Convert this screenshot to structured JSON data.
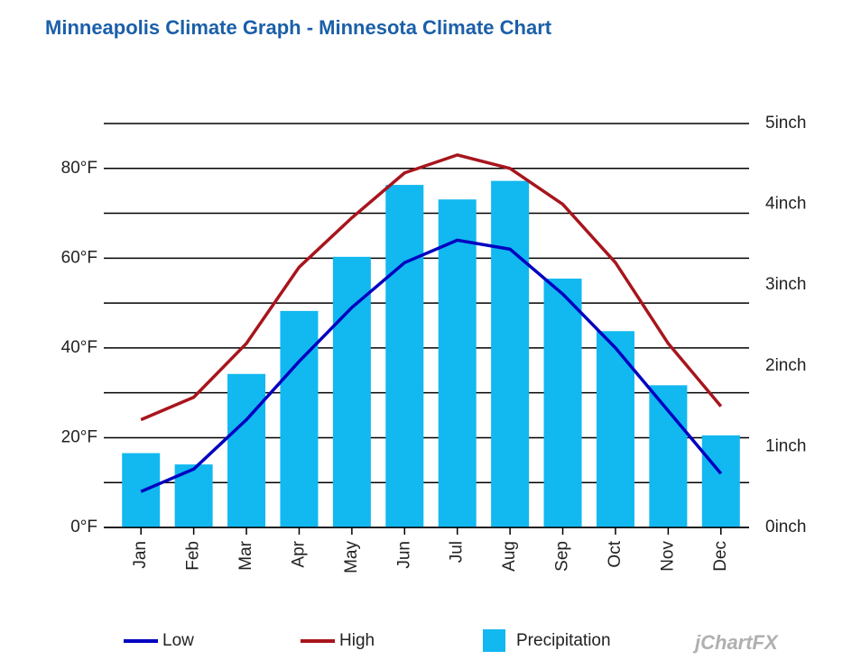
{
  "chart_data": {
    "type": "bar-line",
    "title": "Minneapolis Climate Graph - Minnesota Climate Chart",
    "categories": [
      "Jan",
      "Feb",
      "Mar",
      "Apr",
      "May",
      "Jun",
      "Jul",
      "Aug",
      "Sep",
      "Oct",
      "Nov",
      "Dec"
    ],
    "series": [
      {
        "name": "Low",
        "type": "line",
        "color": "#0000c0",
        "values": [
          8,
          13,
          24,
          37,
          49,
          59,
          64,
          62,
          52,
          40,
          26,
          12
        ]
      },
      {
        "name": "High",
        "type": "line",
        "color": "#a8151d",
        "values": [
          24,
          29,
          41,
          58,
          69,
          79,
          83,
          80,
          72,
          59,
          41,
          27
        ]
      },
      {
        "name": "Precipitation",
        "type": "bar",
        "axis": "y2",
        "color": "#12b8f0",
        "values": [
          0.92,
          0.78,
          1.9,
          2.68,
          3.35,
          4.24,
          4.06,
          4.29,
          3.08,
          2.43,
          1.76,
          1.14
        ]
      }
    ],
    "ylim": [
      0,
      90
    ],
    "yticks": [
      {
        "value": 0,
        "label": "0°F"
      },
      {
        "value": 20,
        "label": "20°F"
      },
      {
        "value": 40,
        "label": "40°F"
      },
      {
        "value": 60,
        "label": "60°F"
      },
      {
        "value": 80,
        "label": "80°F"
      }
    ],
    "y_minor_ticks": [
      10,
      30,
      50,
      70,
      90
    ],
    "y2lim": [
      0,
      5
    ],
    "y2ticks": [
      {
        "value": 0,
        "label": "0inch"
      },
      {
        "value": 1,
        "label": "1inch"
      },
      {
        "value": 2,
        "label": "2inch"
      },
      {
        "value": 3,
        "label": "3inch"
      },
      {
        "value": 4,
        "label": "4inch"
      },
      {
        "value": 5,
        "label": "5inch"
      }
    ],
    "grid": true,
    "watermark": "jChartFX"
  }
}
